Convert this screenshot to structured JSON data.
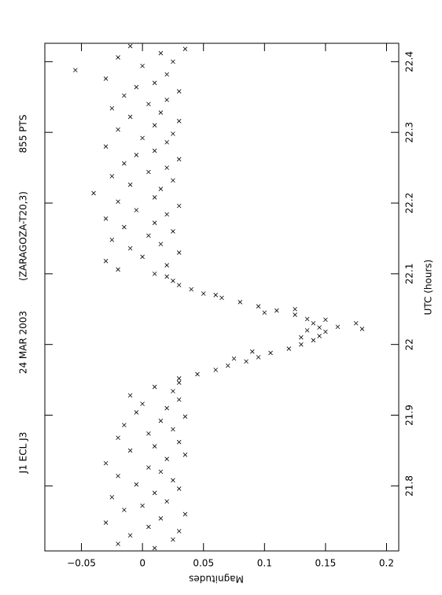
{
  "chart_data": {
    "type": "scatter",
    "header": [
      "J1 ECL J3",
      "24 MAR 2003",
      "(ZARAGOZA-T20,3)",
      "855 PTS"
    ],
    "xlabel": "UTC (hours)",
    "ylabel": "Magnitudes",
    "xlim": [
      21.708,
      22.426
    ],
    "ylim": [
      -0.08,
      0.21
    ],
    "xticks": [
      21.8,
      21.9,
      22,
      22.1,
      22.2,
      22.3,
      22.4
    ],
    "yticks": [
      {
        "value": -0.05,
        "label": "−0.05"
      },
      0,
      0.05,
      0.1,
      0.15,
      0.2
    ],
    "color": "#000000",
    "x": [
      21.712,
      21.718,
      21.724,
      21.73,
      21.736,
      21.742,
      21.748,
      21.754,
      21.76,
      21.766,
      21.772,
      21.778,
      21.784,
      21.79,
      21.796,
      21.802,
      21.808,
      21.814,
      21.82,
      21.826,
      21.832,
      21.838,
      21.844,
      21.85,
      21.856,
      21.862,
      21.868,
      21.874,
      21.88,
      21.886,
      21.892,
      21.898,
      21.904,
      21.91,
      21.916,
      21.922,
      21.928,
      21.934,
      21.94,
      21.946,
      21.952,
      21.958,
      21.964,
      21.97,
      21.976,
      21.982,
      21.988,
      21.994,
      22.0,
      22.006,
      22.012,
      22.018,
      22.024,
      22.03,
      22.036,
      22.042,
      22.048,
      22.054,
      22.06,
      22.066,
      22.072,
      22.078,
      22.084,
      22.09,
      22.096,
      21.98,
      21.99,
      22.01,
      22.02,
      22.025,
      22.035,
      22.045,
      22.05,
      22.07,
      22.03,
      22.022,
      22.1,
      22.106,
      22.112,
      22.118,
      22.124,
      22.13,
      22.136,
      22.142,
      22.148,
      22.154,
      22.16,
      22.166,
      22.172,
      22.178,
      22.184,
      22.19,
      22.196,
      22.202,
      22.208,
      22.214,
      22.22,
      22.226,
      22.232,
      22.238,
      22.244,
      22.25,
      22.256,
      22.262,
      22.268,
      22.274,
      22.28,
      22.286,
      22.292,
      22.298,
      22.304,
      22.31,
      22.316,
      22.322,
      22.328,
      22.334,
      22.34,
      22.346,
      22.352,
      22.358,
      22.364,
      22.37,
      22.376,
      22.382,
      22.388,
      22.394,
      22.4,
      22.406,
      22.412,
      22.418,
      22.422
    ],
    "y": [
      0.01,
      -0.02,
      0.025,
      -0.01,
      0.03,
      0.005,
      -0.03,
      0.015,
      0.035,
      -0.015,
      0,
      0.02,
      -0.025,
      0.01,
      0.03,
      -0.005,
      0.025,
      -0.02,
      0.015,
      0.005,
      -0.03,
      0.02,
      0.035,
      -0.01,
      0.01,
      0.03,
      -0.02,
      0.005,
      0.025,
      -0.015,
      0.015,
      0.035,
      -0.005,
      0.02,
      0,
      0.03,
      -0.01,
      0.025,
      0.01,
      0.03,
      0.03,
      0.045,
      0.06,
      0.07,
      0.085,
      0.095,
      0.105,
      0.12,
      0.13,
      0.14,
      0.145,
      0.15,
      0.145,
      0.14,
      0.135,
      0.125,
      0.11,
      0.095,
      0.08,
      0.065,
      0.05,
      0.04,
      0.03,
      0.025,
      0.02,
      0.075,
      0.09,
      0.13,
      0.135,
      0.16,
      0.15,
      0.1,
      0.125,
      0.06,
      0.175,
      0.18,
      0.01,
      -0.02,
      0.02,
      -0.03,
      0,
      0.03,
      -0.01,
      0.015,
      -0.025,
      0.005,
      0.025,
      -0.015,
      0.01,
      -0.03,
      0.02,
      -0.005,
      0.03,
      -0.02,
      0.01,
      -0.04,
      0.015,
      -0.01,
      0.025,
      -0.025,
      0.005,
      0.02,
      -0.015,
      0.03,
      -0.005,
      0.01,
      -0.03,
      0.02,
      0,
      0.025,
      -0.02,
      0.01,
      0.03,
      -0.01,
      0.015,
      -0.025,
      0.005,
      0.02,
      -0.015,
      0.03,
      -0.005,
      0.01,
      -0.03,
      0.02,
      -0.055,
      0,
      0.025,
      -0.02,
      0.015,
      0.035,
      -0.01
    ]
  }
}
